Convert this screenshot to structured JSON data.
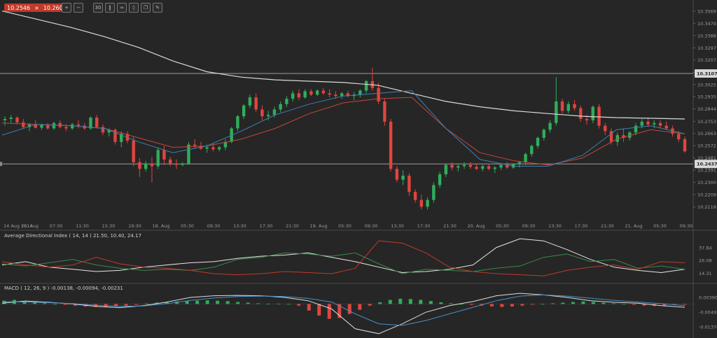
{
  "toolbar": {
    "bid": "10.2546",
    "ask": "10.2604",
    "close_glyph": "×",
    "tools": [
      {
        "icon": "zoom-in-icon",
        "glyph": "+"
      },
      {
        "icon": "zoom-out-icon",
        "glyph": "−"
      },
      {
        "icon": "timeframe-icon",
        "glyph": "30"
      },
      {
        "icon": "chart-type-icon",
        "glyph": "‖"
      },
      {
        "icon": "indicators-icon",
        "glyph": "≈"
      },
      {
        "icon": "objects-icon",
        "glyph": "◊"
      },
      {
        "icon": "copy-icon",
        "glyph": "❐"
      },
      {
        "icon": "draw-icon",
        "glyph": "✎"
      }
    ]
  },
  "colors": {
    "bull": "#2fae5a",
    "bear": "#e0453e",
    "ma_long": "#d9d9d9",
    "ma_mid": "#c4473a",
    "ma_fast": "#3f7fb5",
    "hline": "#9e9e9e",
    "adx": "#e6e6e6",
    "plus_di": "#3a8a4a",
    "minus_di": "#c0392b",
    "macd_line": "#dddddd",
    "signal_line": "#4a90c9"
  },
  "chart_data": [
    {
      "type": "candlestick",
      "y_ticks": [
        "10.3569",
        "10.3479",
        "10.3388",
        "10.3297",
        "10.3207",
        "10.3116",
        "10.3025",
        "10.2935",
        "10.2844",
        "10.2753",
        "10.2663",
        "10.2572",
        "10.2481",
        "10.2391",
        "10.2300",
        "10.2209",
        "10.2118"
      ],
      "ylim": [
        10.207,
        10.361
      ],
      "x_ticks": [
        "14 Aug 2014",
        "15. Aug",
        "07:30",
        "11:30",
        "15:30",
        "19:30",
        "18. Aug",
        "05:30",
        "09:30",
        "13:30",
        "17:30",
        "21:30",
        "19. Aug",
        "05:30",
        "09:30",
        "13:30",
        "17:30",
        "21:30",
        "20. Aug",
        "05:30",
        "09:30",
        "13:30",
        "17:30",
        "21:30",
        "21. Aug",
        "05:30",
        "09:30"
      ],
      "price_labels": [
        {
          "value": "10.3107"
        },
        {
          "value": "10.2437"
        }
      ],
      "hlines": [
        10.3107,
        10.2437
      ],
      "candles": [
        [
          10.276,
          10.279,
          10.272,
          10.277
        ],
        [
          10.277,
          10.28,
          10.274,
          10.278
        ],
        [
          10.278,
          10.279,
          10.273,
          10.2745
        ],
        [
          10.2745,
          10.277,
          10.27,
          10.271
        ],
        [
          10.271,
          10.274,
          10.268,
          10.273
        ],
        [
          10.273,
          10.276,
          10.27,
          10.2705
        ],
        [
          10.2705,
          10.2735,
          10.269,
          10.2725
        ],
        [
          10.2725,
          10.274,
          10.269,
          10.27
        ],
        [
          10.27,
          10.275,
          10.269,
          10.274
        ],
        [
          10.274,
          10.276,
          10.27,
          10.271
        ],
        [
          10.271,
          10.273,
          10.268,
          10.27
        ],
        [
          10.27,
          10.274,
          10.269,
          10.273
        ],
        [
          10.273,
          10.276,
          10.27,
          10.272
        ],
        [
          10.272,
          10.274,
          10.269,
          10.27
        ],
        [
          10.27,
          10.279,
          10.269,
          10.278
        ],
        [
          10.278,
          10.28,
          10.27,
          10.271
        ],
        [
          10.271,
          10.273,
          10.265,
          10.267
        ],
        [
          10.267,
          10.27,
          10.264,
          10.269
        ],
        [
          10.269,
          10.27,
          10.258,
          10.26
        ],
        [
          10.26,
          10.268,
          10.256,
          10.266
        ],
        [
          10.266,
          10.268,
          10.259,
          10.261
        ],
        [
          10.261,
          10.264,
          10.242,
          10.245
        ],
        [
          10.245,
          10.248,
          10.234,
          10.24
        ],
        [
          10.24,
          10.246,
          10.238,
          10.244
        ],
        [
          10.244,
          10.249,
          10.23,
          10.242
        ],
        [
          10.242,
          10.256,
          10.24,
          10.254
        ],
        [
          10.254,
          10.257,
          10.243,
          10.247
        ],
        [
          10.247,
          10.249,
          10.242,
          10.244
        ],
        [
          10.244,
          10.247,
          10.24,
          10.243
        ],
        [
          10.243,
          10.245,
          10.242,
          10.244
        ],
        [
          10.244,
          10.26,
          10.243,
          10.258
        ],
        [
          10.258,
          10.262,
          10.255,
          10.257
        ],
        [
          10.257,
          10.26,
          10.254,
          10.255
        ],
        [
          10.255,
          10.258,
          10.252,
          10.256
        ],
        [
          10.256,
          10.259,
          10.253,
          10.2545
        ],
        [
          10.2545,
          10.257,
          10.253,
          10.256
        ],
        [
          10.256,
          10.262,
          10.254,
          10.26
        ],
        [
          10.26,
          10.271,
          10.259,
          10.27
        ],
        [
          10.27,
          10.28,
          10.268,
          10.279
        ],
        [
          10.279,
          10.288,
          10.277,
          10.287
        ],
        [
          10.287,
          10.295,
          10.285,
          10.293
        ],
        [
          10.293,
          10.296,
          10.282,
          10.284
        ],
        [
          10.284,
          10.287,
          10.276,
          10.279
        ],
        [
          10.279,
          10.283,
          10.276,
          10.28
        ],
        [
          10.28,
          10.286,
          10.278,
          10.284
        ],
        [
          10.284,
          10.29,
          10.282,
          10.288
        ],
        [
          10.288,
          10.294,
          10.286,
          10.292
        ],
        [
          10.292,
          10.298,
          10.29,
          10.296
        ],
        [
          10.296,
          10.299,
          10.291,
          10.293
        ],
        [
          10.293,
          10.299,
          10.292,
          10.2975
        ],
        [
          10.2975,
          10.299,
          10.294,
          10.295
        ],
        [
          10.295,
          10.299,
          10.294,
          10.298
        ],
        [
          10.298,
          10.3,
          10.295,
          10.296
        ],
        [
          10.296,
          10.299,
          10.293,
          10.295
        ],
        [
          10.295,
          10.2975,
          10.292,
          10.294
        ],
        [
          10.294,
          10.297,
          10.292,
          10.296
        ],
        [
          10.296,
          10.298,
          10.293,
          10.294
        ],
        [
          10.294,
          10.297,
          10.291,
          10.295
        ],
        [
          10.295,
          10.299,
          10.293,
          10.298
        ],
        [
          10.298,
          10.306,
          10.296,
          10.305
        ],
        [
          10.305,
          10.315,
          10.298,
          10.3
        ],
        [
          10.3,
          10.304,
          10.288,
          10.29
        ],
        [
          10.29,
          10.292,
          10.272,
          10.275
        ],
        [
          10.275,
          10.277,
          10.238,
          10.24
        ],
        [
          10.24,
          10.242,
          10.23,
          10.232
        ],
        [
          10.232,
          10.239,
          10.228,
          10.235
        ],
        [
          10.235,
          10.237,
          10.22,
          10.223
        ],
        [
          10.223,
          10.225,
          10.215,
          10.217
        ],
        [
          10.217,
          10.221,
          10.21,
          10.212
        ],
        [
          10.212,
          10.219,
          10.21,
          10.217
        ],
        [
          10.217,
          10.23,
          10.215,
          10.228
        ],
        [
          10.228,
          10.238,
          10.226,
          10.236
        ],
        [
          10.236,
          10.244,
          10.234,
          10.243
        ],
        [
          10.243,
          10.245,
          10.239,
          10.241
        ],
        [
          10.241,
          10.244,
          10.238,
          10.242
        ],
        [
          10.242,
          10.245,
          10.24,
          10.243
        ],
        [
          10.243,
          10.245,
          10.24,
          10.2415
        ],
        [
          10.2415,
          10.244,
          10.239,
          10.24
        ],
        [
          10.24,
          10.243,
          10.238,
          10.242
        ],
        [
          10.242,
          10.244,
          10.239,
          10.24
        ],
        [
          10.24,
          10.242,
          10.237,
          10.241
        ],
        [
          10.241,
          10.244,
          10.239,
          10.243
        ],
        [
          10.243,
          10.245,
          10.24,
          10.241
        ],
        [
          10.241,
          10.244,
          10.24,
          10.2435
        ],
        [
          10.2435,
          10.246,
          10.241,
          10.245
        ],
        [
          10.245,
          10.252,
          10.243,
          10.251
        ],
        [
          10.251,
          10.258,
          10.249,
          10.257
        ],
        [
          10.257,
          10.264,
          10.255,
          10.263
        ],
        [
          10.263,
          10.27,
          10.261,
          10.269
        ],
        [
          10.269,
          10.276,
          10.267,
          10.274
        ],
        [
          10.274,
          10.308,
          10.272,
          10.29
        ],
        [
          10.29,
          10.292,
          10.281,
          10.283
        ],
        [
          10.283,
          10.29,
          10.281,
          10.288
        ],
        [
          10.288,
          10.291,
          10.283,
          10.285
        ],
        [
          10.285,
          10.287,
          10.275,
          10.277
        ],
        [
          10.277,
          10.28,
          10.273,
          10.276
        ],
        [
          10.276,
          10.287,
          10.274,
          10.286
        ],
        [
          10.286,
          10.288,
          10.27,
          10.272
        ],
        [
          10.272,
          10.274,
          10.265,
          10.268
        ],
        [
          10.268,
          10.27,
          10.258,
          10.26
        ],
        [
          10.26,
          10.267,
          10.257,
          10.265
        ],
        [
          10.265,
          10.27,
          10.26,
          10.263
        ],
        [
          10.263,
          10.268,
          10.261,
          10.267
        ],
        [
          10.267,
          10.274,
          10.265,
          10.272
        ],
        [
          10.272,
          10.277,
          10.27,
          10.275
        ],
        [
          10.275,
          10.278,
          10.271,
          10.273
        ],
        [
          10.273,
          10.276,
          10.27,
          10.274
        ],
        [
          10.274,
          10.276,
          10.27,
          10.272
        ],
        [
          10.272,
          10.275,
          10.269,
          10.27
        ],
        [
          10.27,
          10.272,
          10.264,
          10.266
        ],
        [
          10.266,
          10.268,
          10.26,
          10.262
        ],
        [
          10.262,
          10.264,
          10.252,
          10.253
        ]
      ],
      "ma_long": [
        10.357,
        10.351,
        10.345,
        10.338,
        10.33,
        10.32,
        10.312,
        10.308,
        10.306,
        10.305,
        10.304,
        10.302,
        10.296,
        10.29,
        10.286,
        10.283,
        10.281,
        10.279,
        10.278,
        10.2775,
        10.277
      ],
      "ma_mid": [
        10.274,
        10.273,
        10.272,
        10.27,
        10.263,
        10.256,
        10.257,
        10.262,
        10.27,
        10.281,
        10.289,
        10.292,
        10.293,
        10.27,
        10.252,
        10.246,
        10.243,
        10.248,
        10.262,
        10.269,
        10.266
      ],
      "ma_fast": [
        10.265,
        10.273,
        10.272,
        10.27,
        10.26,
        10.252,
        10.257,
        10.268,
        10.28,
        10.288,
        10.294,
        10.296,
        10.298,
        10.27,
        10.247,
        10.242,
        10.242,
        10.25,
        10.269,
        10.272,
        10.266
      ]
    },
    {
      "type": "line",
      "title": "Average Directional Index ( 14, 14 ) 21.50, 10.40, 24.17",
      "y_ticks": [
        "37.84",
        "26.08",
        "14.31"
      ],
      "ylim": [
        7,
        48
      ],
      "series": [
        {
          "name": "ADX",
          "values": [
            22,
            25,
            20,
            18,
            16,
            17,
            20,
            22,
            24,
            25,
            28,
            30,
            31,
            33,
            29,
            25,
            20,
            15,
            16,
            18,
            22,
            38,
            46,
            44,
            36,
            27,
            20,
            17,
            15,
            18
          ]
        },
        {
          "name": "+DI",
          "values": [
            23,
            21,
            24,
            27,
            22,
            19,
            17,
            18,
            17,
            20,
            27,
            29,
            33,
            32,
            30,
            33,
            23,
            14,
            18,
            17,
            16,
            19,
            21,
            29,
            32,
            25,
            27,
            19,
            21,
            18
          ]
        },
        {
          "name": "-DI",
          "values": [
            25,
            22,
            20,
            22,
            29,
            23,
            20,
            19,
            17,
            14,
            13,
            14,
            16,
            15,
            14,
            19,
            44,
            42,
            33,
            20,
            16,
            14,
            13,
            12,
            17,
            20,
            22,
            18,
            25,
            24
          ]
        }
      ]
    },
    {
      "type": "bar",
      "title": "MACD ( 12, 26, 9 ) -0.00138, -0.00094, -0.00231",
      "y_ticks": [
        "0.00390",
        "-0.00492",
        "-0.01374"
      ],
      "ylim": [
        -0.0185,
        0.0095
      ],
      "histogram": [
        0.002,
        0.0025,
        0.0015,
        0.001,
        0.0005,
        0.0,
        -0.0005,
        -0.001,
        -0.0015,
        -0.0018,
        -0.002,
        -0.0015,
        -0.001,
        -0.0005,
        0.0003,
        0.0008,
        0.0012,
        0.0015,
        0.0018,
        0.002,
        0.0022,
        0.002,
        0.0017,
        0.0012,
        0.0008,
        0.0004,
        0.0002,
        0.0002,
        0.0,
        -0.001,
        -0.004,
        -0.007,
        -0.009,
        -0.0085,
        -0.006,
        -0.0035,
        -0.001,
        0.001,
        0.0025,
        0.0032,
        0.003,
        0.0025,
        0.0018,
        0.001,
        0.0004,
        0.0,
        -0.0005,
        -0.001,
        -0.0015,
        -0.0018,
        -0.0015,
        -0.001,
        -0.0004,
        0.0,
        0.0004,
        0.0008,
        0.0012,
        0.0015,
        0.0012,
        0.0008,
        0.0004,
        0.0,
        -0.0005,
        -0.001,
        -0.0012,
        -0.001,
        -0.0007,
        -0.0004
      ],
      "series": [
        {
          "name": "MACD",
          "values": [
            0.0005,
            0.0018,
            0.001,
            0.0,
            -0.0015,
            -0.0022,
            -0.001,
            0.0012,
            0.004,
            0.005,
            0.0052,
            0.005,
            0.004,
            0.002,
            -0.003,
            -0.015,
            -0.018,
            -0.012,
            -0.005,
            -0.001,
            0.0015,
            0.005,
            0.0065,
            0.0055,
            0.004,
            0.002,
            0.001,
            0.0005,
            -0.001,
            -0.002
          ]
        },
        {
          "name": "Signal",
          "values": [
            0.0015,
            0.0012,
            0.0008,
            0.0002,
            -0.0008,
            -0.0014,
            -0.0012,
            0.0002,
            0.0022,
            0.0036,
            0.0045,
            0.0048,
            0.0045,
            0.0034,
            0.0012,
            -0.006,
            -0.012,
            -0.013,
            -0.01,
            -0.006,
            -0.002,
            0.002,
            0.0048,
            0.0055,
            0.0048,
            0.0035,
            0.0022,
            0.0012,
            0.0002,
            -0.001
          ]
        }
      ]
    }
  ]
}
